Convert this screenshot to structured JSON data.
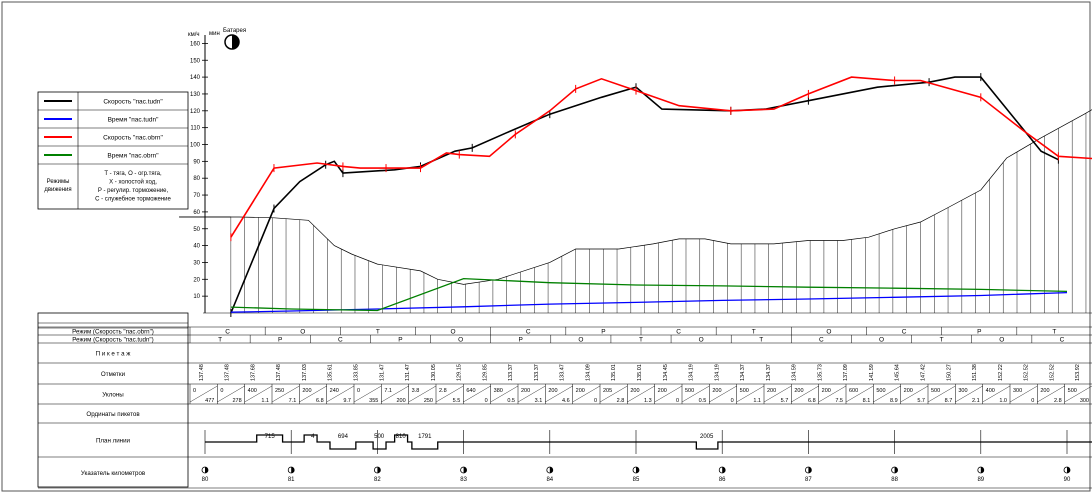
{
  "window": {
    "title": ""
  },
  "legend": {
    "rows": [
      {
        "label": "Скорость \"пас.tudn\"",
        "color": "#000000"
      },
      {
        "label": "Время \"пас.tudn\"",
        "color": "#0000ff"
      },
      {
        "label": "Скорость \"пас.obrn\"",
        "color": "#ff0000"
      },
      {
        "label": "Время \"пас.obrn\"",
        "color": "#008000"
      }
    ],
    "modes_title": [
      "Режимы",
      "движения"
    ],
    "modes_text": [
      "Т - тяга, О - огр.тяга,",
      "Х - холостой ход,",
      "Р - регулир. торможение,",
      "С - служебное торможение"
    ]
  },
  "y_axis": {
    "unit": "км/ч",
    "ticks": [
      10,
      20,
      30,
      40,
      50,
      60,
      70,
      80,
      90,
      100,
      110,
      120,
      130,
      140,
      150,
      160
    ]
  },
  "markers": {
    "min": "мин",
    "battery": "Батарея"
  },
  "table": {
    "rows": [
      {
        "label": "Режим (Скорость \"пас.obrn\")"
      },
      {
        "label": "Режим (Скорость \"пас.tudn\")"
      },
      {
        "label": "П и к е т а ж"
      },
      {
        "label": "Отметки"
      },
      {
        "label": "Уклоны"
      },
      {
        "label": "Ординаты пикетов"
      },
      {
        "label": "План линии"
      },
      {
        "label": "Указатель километров"
      }
    ]
  },
  "chart_data": {
    "type": "line",
    "xlim": [
      79.7,
      90.5
    ],
    "ylim": [
      0,
      165
    ],
    "xlabel": "",
    "ylabel": "км/ч",
    "series": [
      {
        "name": "Скорость \"пас.tudn\"",
        "color": "#000000",
        "role": "speed",
        "points": [
          [
            80.3,
            0
          ],
          [
            80.8,
            62
          ],
          [
            81.1,
            78
          ],
          [
            81.4,
            88
          ],
          [
            81.5,
            90
          ],
          [
            81.6,
            83
          ],
          [
            82.2,
            85
          ],
          [
            82.5,
            87
          ],
          [
            82.9,
            96
          ],
          [
            83.1,
            98
          ],
          [
            83.5,
            107
          ],
          [
            84,
            118
          ],
          [
            84.6,
            128
          ],
          [
            85,
            134
          ],
          [
            85.3,
            121
          ],
          [
            86.1,
            120
          ],
          [
            86.5,
            121
          ],
          [
            87,
            126
          ],
          [
            87.8,
            134
          ],
          [
            88.4,
            137
          ],
          [
            88.7,
            140
          ],
          [
            89,
            140
          ],
          [
            89.7,
            96
          ],
          [
            89.9,
            91
          ]
        ]
      },
      {
        "name": "Время \"пас.tudn\"",
        "color": "#0000ff",
        "role": "time",
        "points": [
          [
            80.3,
            0.5
          ],
          [
            81,
            1.2
          ],
          [
            82,
            2.4
          ],
          [
            83,
            3.7
          ],
          [
            84,
            5.3
          ],
          [
            85,
            6.3
          ],
          [
            86,
            7.5
          ],
          [
            87,
            8.3
          ],
          [
            88,
            9.3
          ],
          [
            89,
            10.4
          ],
          [
            90,
            12.1
          ]
        ]
      },
      {
        "name": "Скорость \"пас.obrn\"",
        "color": "#ff0000",
        "role": "speed",
        "points": [
          [
            80.3,
            45
          ],
          [
            80.8,
            86
          ],
          [
            81.3,
            89
          ],
          [
            81.6,
            87
          ],
          [
            81.8,
            86
          ],
          [
            82.1,
            86
          ],
          [
            82.4,
            86
          ],
          [
            82.5,
            86
          ],
          [
            82.8,
            95
          ],
          [
            82.95,
            94
          ],
          [
            83.3,
            93
          ],
          [
            83.6,
            106
          ],
          [
            84,
            120
          ],
          [
            84.3,
            133
          ],
          [
            84.6,
            139
          ],
          [
            85,
            132
          ],
          [
            85.5,
            123
          ],
          [
            86.1,
            120
          ],
          [
            86.6,
            121
          ],
          [
            87,
            130
          ],
          [
            87.5,
            140
          ],
          [
            88,
            138
          ],
          [
            88.3,
            138
          ],
          [
            89,
            128
          ],
          [
            89.5,
            108
          ],
          [
            89.9,
            93
          ],
          [
            90.5,
            91
          ]
        ]
      },
      {
        "name": "Время \"пас.obrn\"",
        "color": "#008000",
        "role": "time",
        "points": [
          [
            80.3,
            3.5
          ],
          [
            81,
            2.4
          ],
          [
            82,
            1.5
          ],
          [
            83,
            20.4
          ],
          [
            84,
            18
          ],
          [
            85,
            16.6
          ],
          [
            86,
            16.1
          ],
          [
            87,
            15.3
          ],
          [
            88,
            14.7
          ],
          [
            89,
            14
          ],
          [
            90,
            12.8
          ]
        ]
      }
    ],
    "profile": [
      [
        79.7,
        57
      ],
      [
        80.4,
        57
      ],
      [
        80.8,
        56.5
      ],
      [
        81.2,
        55
      ],
      [
        81.5,
        40
      ],
      [
        81.7,
        35
      ],
      [
        82,
        29
      ],
      [
        82.5,
        25
      ],
      [
        82.7,
        20
      ],
      [
        83,
        17
      ],
      [
        83.4,
        20
      ],
      [
        84,
        30
      ],
      [
        84.3,
        38
      ],
      [
        84.8,
        38
      ],
      [
        85.2,
        41
      ],
      [
        85.5,
        44
      ],
      [
        85.8,
        44
      ],
      [
        86.1,
        41
      ],
      [
        86.6,
        41
      ],
      [
        87,
        43
      ],
      [
        87.4,
        43
      ],
      [
        87.7,
        45
      ],
      [
        88,
        50
      ],
      [
        88.3,
        54
      ],
      [
        88.6,
        62
      ],
      [
        89,
        73
      ],
      [
        89.3,
        92
      ],
      [
        89.7,
        104
      ],
      [
        90.2,
        118
      ],
      [
        90.5,
        127
      ]
    ]
  },
  "lower_table": {
    "rows": {
      "mode_obrn": [
        "С",
        "О",
        "Т",
        "О",
        "С",
        "Р",
        "С",
        "Т",
        "О",
        "С",
        "Р",
        "Т"
      ],
      "mode_tudn": [
        "Т",
        "Р",
        "С",
        "Р",
        "О",
        "Р",
        "О",
        "Т",
        "О",
        "Т",
        "С",
        "О",
        "Т",
        "О",
        "С"
      ],
      "elevations": [
        "137.48",
        "137.48",
        "137.68",
        "137.48",
        "137.03",
        "135.61",
        "133.85",
        "131.47",
        "131.47",
        "130.05",
        "129.15",
        "129.85",
        "133.37",
        "133.37",
        "133.47",
        "134.09",
        "135.01",
        "135.01",
        "134.45",
        "134.19",
        "134.19",
        "134.37",
        "134.37",
        "134.59",
        "135.73",
        "137.09",
        "141.59",
        "145.64",
        "147.42",
        "150.27",
        "151.38",
        "152.22",
        "152.52",
        "152.52",
        "153.92"
      ],
      "gradients": [
        "0",
        "477",
        "0",
        "278",
        "400",
        "1.1",
        "250",
        "7.1",
        "200",
        "6.8",
        "240",
        "9.7",
        "0",
        "355",
        "7.1",
        "200",
        "3.8",
        "250",
        "2.8",
        "5.5",
        "640",
        "0",
        "380",
        "0.5",
        "200",
        "3.1",
        "200",
        "4.6",
        "200",
        "0",
        "205",
        "2.8",
        "200",
        "1.3",
        "200",
        "0",
        "500",
        "0.5",
        "200",
        "0",
        "500",
        "1.1",
        "200",
        "5.7",
        "200",
        "6.8",
        "200",
        "7.5",
        "600",
        "8.1",
        "500",
        "8.9",
        "200",
        "5.7",
        "500",
        "8.7",
        "300",
        "2.1",
        "400",
        "1.0",
        "300",
        "0",
        "200",
        "2.8",
        "500",
        "300"
      ],
      "plan": [
        "715",
        "4",
        "694",
        "500",
        "810",
        "1791",
        "2005"
      ],
      "km": [
        "80",
        "81",
        "82",
        "83",
        "84",
        "85",
        "86",
        "87",
        "88",
        "89",
        "90"
      ]
    }
  }
}
